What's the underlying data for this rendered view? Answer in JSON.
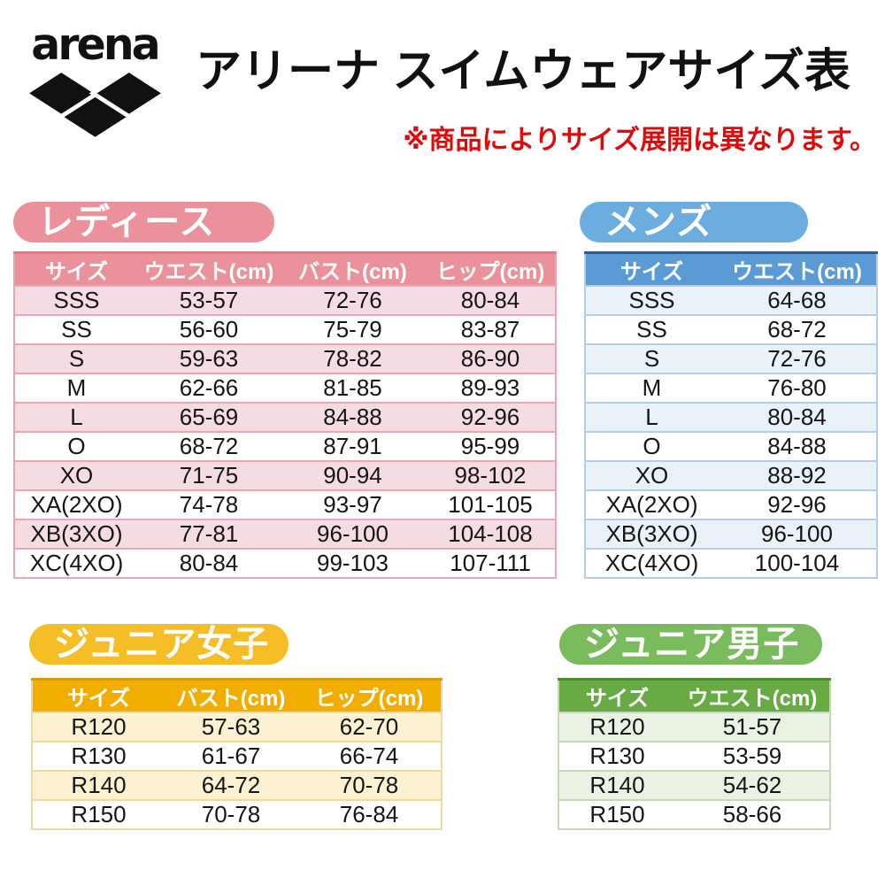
{
  "header": {
    "logo_text": "arena",
    "title": "アリーナ スイムウェアサイズ表",
    "note": "※商品によりサイズ展開は異なります。"
  },
  "colors": {
    "note_red": "#dd0c0c",
    "ladies_badge": "#eb919c",
    "ladies_header": "#eb919c",
    "ladies_light": "#f4dce2",
    "ladies_border": "#eba6b1",
    "ladies_dark": "#dd7d8a",
    "mens_badge": "#6badde",
    "mens_header": "#5b9bd5",
    "mens_light": "#e9f1f9",
    "mens_border": "#b5cde6",
    "mens_dark": "#2e5b8d",
    "girls_badge": "#f5bd26",
    "girls_header": "#f1ad00",
    "girls_light": "#fcf2d2",
    "girls_border": "#eed9a0",
    "girls_dark": "#d89b00",
    "boys_badge": "#7abc5d",
    "boys_header": "#68ab45",
    "boys_light": "#eaf3e3",
    "boys_border": "#c5d8bd",
    "boys_dark": "#4c8a2f"
  },
  "sections": {
    "ladies": {
      "badge": "レディース",
      "columns": [
        "サイズ",
        "ウエスト(cm)",
        "バスト(cm)",
        "ヒップ(cm)"
      ],
      "rows": [
        [
          "SSS",
          "53-57",
          "72-76",
          "80-84"
        ],
        [
          "SS",
          "56-60",
          "75-79",
          "83-87"
        ],
        [
          "S",
          "59-63",
          "78-82",
          "86-90"
        ],
        [
          "M",
          "62-66",
          "81-85",
          "89-93"
        ],
        [
          "L",
          "65-69",
          "84-88",
          "92-96"
        ],
        [
          "O",
          "68-72",
          "87-91",
          "95-99"
        ],
        [
          "XO",
          "71-75",
          "90-94",
          "98-102"
        ],
        [
          "XA(2XO)",
          "74-78",
          "93-97",
          "101-105"
        ],
        [
          "XB(3XO)",
          "77-81",
          "96-100",
          "104-108"
        ],
        [
          "XC(4XO)",
          "80-84",
          "99-103",
          "107-111"
        ]
      ]
    },
    "mens": {
      "badge": "メンズ",
      "columns": [
        "サイズ",
        "ウエスト(cm)"
      ],
      "rows": [
        [
          "SSS",
          "64-68"
        ],
        [
          "SS",
          "68-72"
        ],
        [
          "S",
          "72-76"
        ],
        [
          "M",
          "76-80"
        ],
        [
          "L",
          "80-84"
        ],
        [
          "O",
          "84-88"
        ],
        [
          "XO",
          "88-92"
        ],
        [
          "XA(2XO)",
          "92-96"
        ],
        [
          "XB(3XO)",
          "96-100"
        ],
        [
          "XC(4XO)",
          "100-104"
        ]
      ]
    },
    "junior_girls": {
      "badge": "ジュニア女子",
      "columns": [
        "サイズ",
        "バスト(cm)",
        "ヒップ(cm)"
      ],
      "rows": [
        [
          "R120",
          "57-63",
          "62-70"
        ],
        [
          "R130",
          "61-67",
          "66-74"
        ],
        [
          "R140",
          "64-72",
          "70-78"
        ],
        [
          "R150",
          "70-78",
          "76-84"
        ]
      ]
    },
    "junior_boys": {
      "badge": "ジュニア男子",
      "columns": [
        "サイズ",
        "ウエスト(cm)"
      ],
      "rows": [
        [
          "R120",
          "51-57"
        ],
        [
          "R130",
          "53-59"
        ],
        [
          "R140",
          "54-62"
        ],
        [
          "R150",
          "58-66"
        ]
      ]
    }
  }
}
